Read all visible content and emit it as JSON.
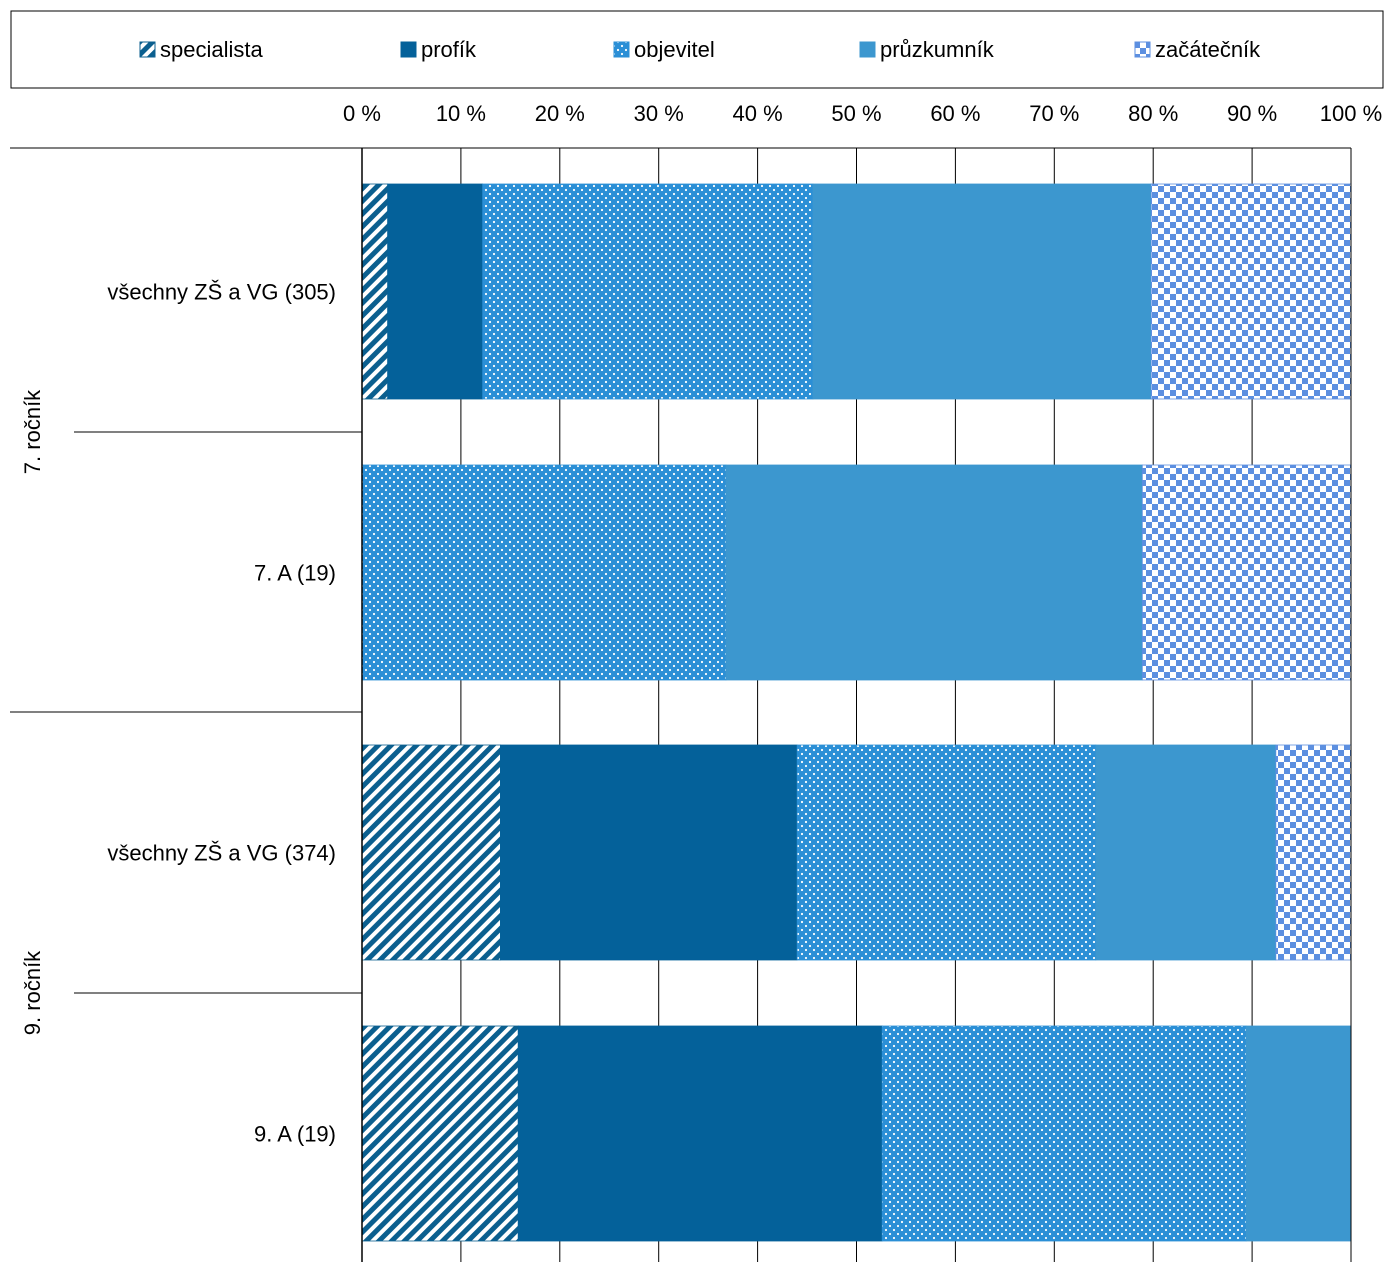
{
  "chart_data": {
    "type": "bar",
    "orientation": "horizontal",
    "stacked": "percent",
    "xlim": [
      0,
      100
    ],
    "x_ticks": [
      "0 %",
      "10 %",
      "20 %",
      "30 %",
      "40 %",
      "50 %",
      "60 %",
      "70 %",
      "80 %",
      "90 %",
      "100 %"
    ],
    "groups": [
      {
        "label": "7. ročník",
        "categories": [
          "všechny ZŠ a VG (305)",
          "7. A (19)"
        ]
      },
      {
        "label": "9. ročník",
        "categories": [
          "všechny ZŠ a VG (374)",
          "9. A (19)"
        ]
      }
    ],
    "categories": [
      "všechny ZŠ a VG (305)",
      "7. A (19)",
      "všechny ZŠ a VG (374)",
      "9. A (19)"
    ],
    "series": [
      {
        "name": "specialista",
        "values": [
          2.6,
          0,
          14.0,
          15.8
        ],
        "color": "#0b5f8f",
        "pattern": "diagonal-stripes"
      },
      {
        "name": "profík",
        "values": [
          9.6,
          0,
          30.0,
          36.8
        ],
        "color": "#04619a",
        "pattern": "solid"
      },
      {
        "name": "objevitel",
        "values": [
          33.4,
          36.8,
          30.2,
          36.8
        ],
        "color": "#2b8fd6",
        "pattern": "dots"
      },
      {
        "name": "průzkumník",
        "values": [
          34.2,
          42.1,
          18.2,
          10.6
        ],
        "color": "#3c97cf",
        "pattern": "solid"
      },
      {
        "name": "začátečník",
        "values": [
          20.2,
          21.1,
          7.6,
          0
        ],
        "color": "#5c8fe0",
        "pattern": "checker"
      }
    ],
    "legend_position": "top",
    "grid": true
  }
}
